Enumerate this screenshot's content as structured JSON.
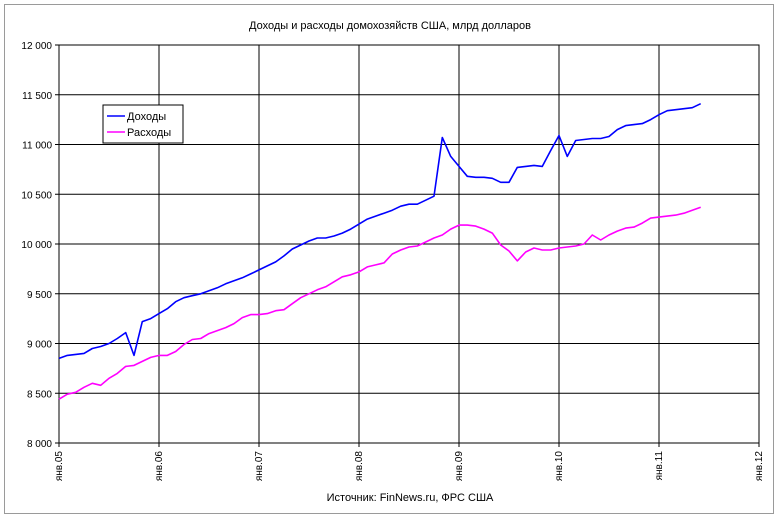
{
  "chart_data": {
    "type": "line",
    "title": "Доходы и расходы домохозяйств США, млрд долларов",
    "source": "Источник: FinNews.ru, ФРС США",
    "xlabel": "",
    "ylabel": "",
    "x_ticks": [
      "янв.05",
      "янв.06",
      "янв.07",
      "янв.08",
      "янв.09",
      "янв.10",
      "янв.11",
      "янв.12"
    ],
    "y_ticks": [
      "8 000",
      "8 500",
      "9 000",
      "9 500",
      "10 000",
      "10 500",
      "11 000",
      "11 500",
      "12 000"
    ],
    "ylim": [
      8000,
      12000
    ],
    "grid": true,
    "legend": "top-left",
    "series": [
      {
        "name": "Доходы",
        "color": "#0000ff",
        "points": [
          [
            "2005-01",
            8850
          ],
          [
            "2005-02",
            8880
          ],
          [
            "2005-03",
            8890
          ],
          [
            "2005-04",
            8900
          ],
          [
            "2005-05",
            8950
          ],
          [
            "2005-06",
            8970
          ],
          [
            "2005-07",
            9000
          ],
          [
            "2005-08",
            9050
          ],
          [
            "2005-09",
            9110
          ],
          [
            "2005-10",
            8880
          ],
          [
            "2005-11",
            9220
          ],
          [
            "2005-12",
            9250
          ],
          [
            "2006-01",
            9300
          ],
          [
            "2006-02",
            9350
          ],
          [
            "2006-03",
            9420
          ],
          [
            "2006-04",
            9460
          ],
          [
            "2006-05",
            9480
          ],
          [
            "2006-06",
            9500
          ],
          [
            "2006-07",
            9530
          ],
          [
            "2006-08",
            9560
          ],
          [
            "2006-09",
            9600
          ],
          [
            "2006-10",
            9630
          ],
          [
            "2006-11",
            9660
          ],
          [
            "2006-12",
            9700
          ],
          [
            "2007-01",
            9740
          ],
          [
            "2007-02",
            9780
          ],
          [
            "2007-03",
            9820
          ],
          [
            "2007-04",
            9880
          ],
          [
            "2007-05",
            9950
          ],
          [
            "2007-06",
            9990
          ],
          [
            "2007-07",
            10030
          ],
          [
            "2007-08",
            10060
          ],
          [
            "2007-09",
            10060
          ],
          [
            "2007-10",
            10080
          ],
          [
            "2007-11",
            10110
          ],
          [
            "2007-12",
            10150
          ],
          [
            "2008-01",
            10200
          ],
          [
            "2008-02",
            10250
          ],
          [
            "2008-03",
            10280
          ],
          [
            "2008-04",
            10310
          ],
          [
            "2008-05",
            10340
          ],
          [
            "2008-06",
            10380
          ],
          [
            "2008-07",
            10400
          ],
          [
            "2008-08",
            10400
          ],
          [
            "2008-09",
            10440
          ],
          [
            "2008-10",
            10480
          ],
          [
            "2008-11",
            11070
          ],
          [
            "2008-12",
            10880
          ],
          [
            "2009-01",
            10780
          ],
          [
            "2009-02",
            10680
          ],
          [
            "2009-03",
            10670
          ],
          [
            "2009-04",
            10670
          ],
          [
            "2009-05",
            10660
          ],
          [
            "2009-06",
            10620
          ],
          [
            "2009-07",
            10620
          ],
          [
            "2009-08",
            10770
          ],
          [
            "2009-09",
            10780
          ],
          [
            "2009-10",
            10790
          ],
          [
            "2009-11",
            10780
          ],
          [
            "2009-12",
            10940
          ],
          [
            "2010-01",
            11090
          ],
          [
            "2010-02",
            10880
          ],
          [
            "2010-03",
            11040
          ],
          [
            "2010-04",
            11050
          ],
          [
            "2010-05",
            11060
          ],
          [
            "2010-06",
            11060
          ],
          [
            "2010-07",
            11080
          ],
          [
            "2010-08",
            11150
          ],
          [
            "2010-09",
            11190
          ],
          [
            "2010-10",
            11200
          ],
          [
            "2010-11",
            11210
          ],
          [
            "2010-12",
            11250
          ],
          [
            "2011-01",
            11300
          ],
          [
            "2011-02",
            11340
          ],
          [
            "2011-03",
            11350
          ],
          [
            "2011-04",
            11360
          ],
          [
            "2011-05",
            11370
          ],
          [
            "2011-06",
            11410
          ]
        ]
      },
      {
        "name": "Расходы",
        "color": "#ff00ff",
        "points": [
          [
            "2005-01",
            8440
          ],
          [
            "2005-02",
            8490
          ],
          [
            "2005-03",
            8510
          ],
          [
            "2005-04",
            8560
          ],
          [
            "2005-05",
            8600
          ],
          [
            "2005-06",
            8580
          ],
          [
            "2005-07",
            8650
          ],
          [
            "2005-08",
            8700
          ],
          [
            "2005-09",
            8770
          ],
          [
            "2005-10",
            8780
          ],
          [
            "2005-11",
            8820
          ],
          [
            "2005-12",
            8860
          ],
          [
            "2006-01",
            8880
          ],
          [
            "2006-02",
            8880
          ],
          [
            "2006-03",
            8920
          ],
          [
            "2006-04",
            8990
          ],
          [
            "2006-05",
            9040
          ],
          [
            "2006-06",
            9050
          ],
          [
            "2006-07",
            9100
          ],
          [
            "2006-08",
            9130
          ],
          [
            "2006-09",
            9160
          ],
          [
            "2006-10",
            9200
          ],
          [
            "2006-11",
            9260
          ],
          [
            "2006-12",
            9290
          ],
          [
            "2007-01",
            9290
          ],
          [
            "2007-02",
            9300
          ],
          [
            "2007-03",
            9330
          ],
          [
            "2007-04",
            9340
          ],
          [
            "2007-05",
            9400
          ],
          [
            "2007-06",
            9460
          ],
          [
            "2007-07",
            9500
          ],
          [
            "2007-08",
            9540
          ],
          [
            "2007-09",
            9570
          ],
          [
            "2007-10",
            9620
          ],
          [
            "2007-11",
            9670
          ],
          [
            "2007-12",
            9690
          ],
          [
            "2008-01",
            9720
          ],
          [
            "2008-02",
            9770
          ],
          [
            "2008-03",
            9790
          ],
          [
            "2008-04",
            9810
          ],
          [
            "2008-05",
            9900
          ],
          [
            "2008-06",
            9940
          ],
          [
            "2008-07",
            9970
          ],
          [
            "2008-08",
            9980
          ],
          [
            "2008-09",
            10020
          ],
          [
            "2008-10",
            10060
          ],
          [
            "2008-11",
            10090
          ],
          [
            "2008-12",
            10150
          ],
          [
            "2009-01",
            10190
          ],
          [
            "2009-02",
            10190
          ],
          [
            "2009-03",
            10180
          ],
          [
            "2009-04",
            10150
          ],
          [
            "2009-05",
            10110
          ],
          [
            "2009-06",
            9990
          ],
          [
            "2009-07",
            9930
          ],
          [
            "2009-08",
            9830
          ],
          [
            "2009-09",
            9920
          ],
          [
            "2009-10",
            9960
          ],
          [
            "2009-11",
            9940
          ],
          [
            "2009-12",
            9940
          ],
          [
            "2010-01",
            9960
          ],
          [
            "2010-02",
            9970
          ],
          [
            "2010-03",
            9980
          ],
          [
            "2010-04",
            10000
          ],
          [
            "2010-05",
            10090
          ],
          [
            "2010-06",
            10040
          ],
          [
            "2010-07",
            10090
          ],
          [
            "2010-08",
            10130
          ],
          [
            "2010-09",
            10160
          ],
          [
            "2010-10",
            10170
          ],
          [
            "2010-11",
            10210
          ],
          [
            "2010-12",
            10260
          ],
          [
            "2011-01",
            10270
          ],
          [
            "2011-02",
            10280
          ],
          [
            "2011-03",
            10290
          ],
          [
            "2011-04",
            10310
          ],
          [
            "2011-05",
            10340
          ],
          [
            "2011-06",
            10370
          ]
        ]
      }
    ]
  }
}
